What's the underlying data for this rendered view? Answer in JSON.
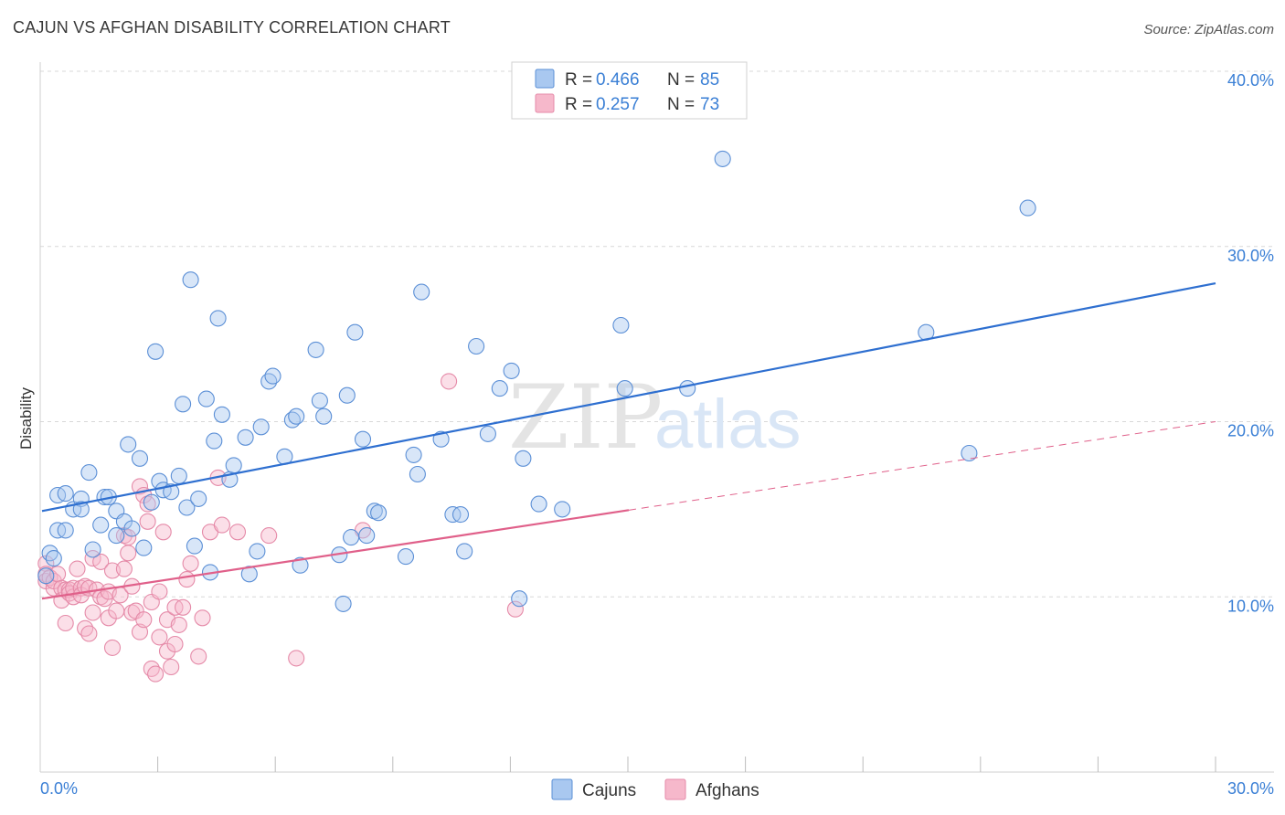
{
  "title": "CAJUN VS AFGHAN DISABILITY CORRELATION CHART",
  "source": "Source: ZipAtlas.com",
  "watermark": {
    "zip": "ZIP",
    "atlas": "atlas"
  },
  "colors": {
    "cajun_fill": "#a9c8f0",
    "cajun_stroke": "#5b8fd6",
    "cajun_line": "#2e6fd0",
    "afghan_fill": "#f6b8cb",
    "afghan_stroke": "#e58aa8",
    "afghan_line": "#e0608a",
    "tick_text": "#3a7fd5",
    "grid": "#d8d8d8"
  },
  "legend": {
    "rows": [
      {
        "r_label": "R =",
        "r_value": "0.466",
        "n_label": "N =",
        "n_value": "85"
      },
      {
        "r_label": "R =",
        "r_value": "0.257",
        "n_label": "N =",
        "n_value": "73"
      }
    ]
  },
  "chart_data": {
    "type": "scatter",
    "title": "CAJUN VS AFGHAN DISABILITY CORRELATION CHART",
    "xlabel": "",
    "ylabel": "Disability",
    "xlim": [
      0,
      30
    ],
    "ylim": [
      0,
      40
    ],
    "x_tick_labels": [
      "0.0%",
      "30.0%"
    ],
    "y_ticks": [
      10,
      20,
      30,
      40
    ],
    "y_tick_labels": [
      "10.0%",
      "20.0%",
      "30.0%",
      "40.0%"
    ],
    "grid": true,
    "legend_position": "top-center",
    "series": [
      {
        "name": "Cajuns",
        "r": 0.466,
        "n": 85,
        "trend": {
          "x0": 0,
          "y0": 14.9,
          "x1": 30,
          "y1": 27.9,
          "style": "solid"
        },
        "points": [
          [
            0.2,
            12.5
          ],
          [
            0.3,
            12.2
          ],
          [
            0.4,
            13.8
          ],
          [
            0.4,
            15.8
          ],
          [
            0.6,
            15.9
          ],
          [
            0.6,
            13.8
          ],
          [
            0.8,
            15.0
          ],
          [
            1.0,
            15.6
          ],
          [
            1.0,
            15.0
          ],
          [
            1.2,
            17.1
          ],
          [
            1.3,
            12.7
          ],
          [
            1.5,
            14.1
          ],
          [
            1.6,
            15.7
          ],
          [
            1.7,
            15.7
          ],
          [
            1.9,
            14.9
          ],
          [
            1.9,
            13.5
          ],
          [
            2.1,
            14.3
          ],
          [
            2.2,
            18.7
          ],
          [
            2.3,
            13.9
          ],
          [
            2.5,
            17.9
          ],
          [
            2.6,
            12.8
          ],
          [
            2.8,
            15.4
          ],
          [
            2.9,
            24.0
          ],
          [
            3.0,
            16.6
          ],
          [
            3.1,
            16.1
          ],
          [
            3.3,
            16.0
          ],
          [
            3.5,
            16.9
          ],
          [
            3.6,
            21.0
          ],
          [
            3.7,
            15.1
          ],
          [
            3.8,
            28.1
          ],
          [
            3.9,
            12.9
          ],
          [
            4.0,
            15.6
          ],
          [
            4.2,
            21.3
          ],
          [
            4.3,
            11.4
          ],
          [
            4.4,
            18.9
          ],
          [
            4.5,
            25.9
          ],
          [
            4.6,
            20.4
          ],
          [
            4.8,
            16.7
          ],
          [
            4.9,
            17.5
          ],
          [
            5.2,
            19.1
          ],
          [
            5.3,
            11.3
          ],
          [
            5.5,
            12.6
          ],
          [
            5.6,
            19.7
          ],
          [
            5.8,
            22.3
          ],
          [
            5.9,
            22.6
          ],
          [
            6.2,
            18.0
          ],
          [
            6.4,
            20.1
          ],
          [
            6.5,
            20.3
          ],
          [
            6.6,
            11.8
          ],
          [
            7.0,
            24.1
          ],
          [
            7.1,
            21.2
          ],
          [
            7.2,
            20.3
          ],
          [
            7.6,
            12.4
          ],
          [
            7.7,
            9.6
          ],
          [
            7.8,
            21.5
          ],
          [
            7.9,
            13.4
          ],
          [
            8.0,
            25.1
          ],
          [
            8.2,
            19.0
          ],
          [
            8.3,
            13.5
          ],
          [
            8.5,
            14.9
          ],
          [
            8.6,
            14.8
          ],
          [
            9.3,
            12.3
          ],
          [
            9.5,
            18.1
          ],
          [
            9.6,
            17.0
          ],
          [
            9.7,
            27.4
          ],
          [
            10.2,
            19.0
          ],
          [
            10.5,
            14.7
          ],
          [
            10.7,
            14.7
          ],
          [
            10.8,
            12.6
          ],
          [
            11.1,
            24.3
          ],
          [
            11.4,
            19.3
          ],
          [
            11.7,
            21.9
          ],
          [
            12.0,
            22.9
          ],
          [
            12.2,
            9.9
          ],
          [
            12.3,
            17.9
          ],
          [
            12.7,
            15.3
          ],
          [
            13.3,
            15.0
          ],
          [
            14.8,
            25.5
          ],
          [
            14.9,
            21.9
          ],
          [
            16.5,
            21.9
          ],
          [
            17.4,
            35.0
          ],
          [
            22.6,
            25.1
          ],
          [
            23.7,
            18.2
          ],
          [
            25.2,
            32.2
          ],
          [
            0.1,
            11.2
          ]
        ]
      },
      {
        "name": "Afghans",
        "r": 0.257,
        "n": 73,
        "trend": {
          "x0": 0,
          "y0": 9.9,
          "x1": 30,
          "y1": 20.0,
          "solid_until": 15
        },
        "points": [
          [
            0.1,
            11.9
          ],
          [
            0.1,
            11.3
          ],
          [
            0.1,
            10.9
          ],
          [
            0.2,
            11.1
          ],
          [
            0.3,
            10.5
          ],
          [
            0.3,
            10.9
          ],
          [
            0.4,
            11.3
          ],
          [
            0.5,
            10.5
          ],
          [
            0.5,
            9.8
          ],
          [
            0.6,
            10.4
          ],
          [
            0.6,
            8.5
          ],
          [
            0.7,
            10.4
          ],
          [
            0.7,
            10.2
          ],
          [
            0.8,
            10.0
          ],
          [
            0.8,
            10.5
          ],
          [
            0.9,
            11.6
          ],
          [
            1.0,
            10.5
          ],
          [
            1.0,
            10.1
          ],
          [
            1.1,
            8.2
          ],
          [
            1.1,
            10.6
          ],
          [
            1.2,
            10.5
          ],
          [
            1.2,
            7.9
          ],
          [
            1.3,
            12.2
          ],
          [
            1.3,
            9.1
          ],
          [
            1.4,
            10.4
          ],
          [
            1.5,
            12.0
          ],
          [
            1.5,
            10.0
          ],
          [
            1.6,
            9.9
          ],
          [
            1.7,
            10.3
          ],
          [
            1.7,
            8.8
          ],
          [
            1.8,
            7.1
          ],
          [
            1.8,
            11.5
          ],
          [
            1.9,
            9.2
          ],
          [
            2.0,
            10.1
          ],
          [
            2.1,
            13.5
          ],
          [
            2.1,
            11.6
          ],
          [
            2.2,
            13.4
          ],
          [
            2.2,
            12.5
          ],
          [
            2.3,
            9.1
          ],
          [
            2.3,
            10.6
          ],
          [
            2.4,
            9.2
          ],
          [
            2.5,
            16.3
          ],
          [
            2.5,
            8.0
          ],
          [
            2.6,
            15.8
          ],
          [
            2.6,
            8.7
          ],
          [
            2.7,
            14.3
          ],
          [
            2.7,
            15.3
          ],
          [
            2.8,
            9.7
          ],
          [
            2.8,
            5.9
          ],
          [
            2.9,
            5.6
          ],
          [
            3.0,
            7.7
          ],
          [
            3.0,
            10.3
          ],
          [
            3.1,
            13.7
          ],
          [
            3.2,
            6.9
          ],
          [
            3.2,
            8.7
          ],
          [
            3.3,
            6.0
          ],
          [
            3.4,
            7.3
          ],
          [
            3.4,
            9.4
          ],
          [
            3.5,
            8.4
          ],
          [
            3.6,
            9.4
          ],
          [
            3.7,
            11.0
          ],
          [
            3.8,
            11.9
          ],
          [
            4.0,
            6.6
          ],
          [
            4.1,
            8.8
          ],
          [
            4.3,
            13.7
          ],
          [
            4.5,
            16.8
          ],
          [
            4.6,
            14.1
          ],
          [
            5.0,
            13.7
          ],
          [
            5.8,
            13.5
          ],
          [
            6.5,
            6.5
          ],
          [
            8.2,
            13.8
          ],
          [
            10.4,
            22.3
          ],
          [
            12.1,
            9.3
          ]
        ]
      }
    ]
  }
}
